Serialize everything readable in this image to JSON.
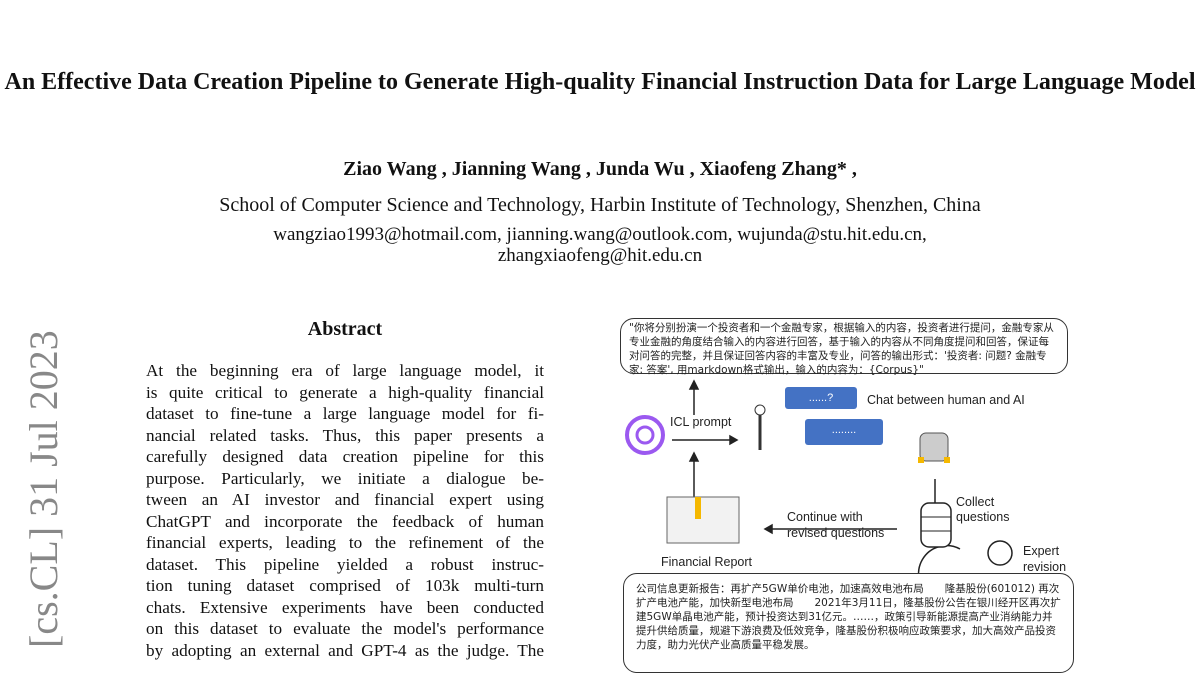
{
  "paper": {
    "title": "An Effective Data Creation Pipeline to Generate High-quality Financial Instruction Data for Large Language Model",
    "authors": "Ziao Wang , Jianning Wang , Junda Wu , Xiaofeng Zhang* ,",
    "affiliation": "School of Computer Science and Technology, Harbin Institute of Technology, Shenzhen, China",
    "emails_line1": "wangziao1993@hotmail.com, jianning.wang@outlook.com, wujunda@stu.hit.edu.cn,",
    "emails_line2": "zhangxiaofeng@hit.edu.cn",
    "arxiv_stamp": "[cs.CL]  31 Jul 2023",
    "abstract_heading": "Abstract",
    "abstract_lines": [
      "At the beginning era of large language model, it",
      "is quite critical to generate a high-quality financial",
      "dataset to fine-tune a large language model for fi-",
      "nancial related tasks. Thus, this paper presents a",
      "carefully designed data creation pipeline for this",
      "purpose. Particularly, we initiate a dialogue be-",
      "tween an AI investor and financial expert using",
      "ChatGPT and incorporate the feedback of human",
      "financial experts, leading to the refinement of the",
      "dataset. This pipeline yielded a robust instruc-",
      "tion tuning dataset comprised of 103k multi-turn",
      "chats. Extensive experiments have been conducted",
      "on this dataset to evaluate the model's performance",
      "by adopting an external and GPT-4 as the judge. The"
    ]
  },
  "figure": {
    "prompt_text": "\"你将分别扮演一个投资者和一个金融专家，根据输入的内容，投资者进行提问，金融专家从专业金融的角度结合输入的内容进行回答，基于输入的内容从不同角度提问和回答，保证每对问答的完整，并且保证回答内容的丰富及专业，问答的输出形式：'投资者: 问题? 金融专家: 答案', 用markdown格式输出，输入的内容为：{Corpus}\"",
    "icl_prompt": "ICL prompt",
    "chat_label": "Chat between human and AI",
    "bubble_question": "......?",
    "bubble_answer": "........",
    "collect": "Collect questions",
    "continue": "Continue with revised questions",
    "financial_report": "Financial Report",
    "expert_revision": "Expert revision",
    "report_text": "公司信息更新报告：再扩产5GW单价电池，加速高效电池布局　　隆基股份(601012) 再次扩产电池产能，加快新型电池布局　　2021年3月11日，隆基股份公告在银川经开区再次扩建5GW单晶电池产能，预计投资达到31亿元。……，政策引导新能源提高产业消纳能力并提升供给质量，规避下游浪费及低效竞争，隆基股份积极响应政策要求，加大高效产品投资力度，助力光伏产业高质量平稳发展。",
    "openai_color": "#9b59f0",
    "bubble_color": "#4472c4"
  }
}
